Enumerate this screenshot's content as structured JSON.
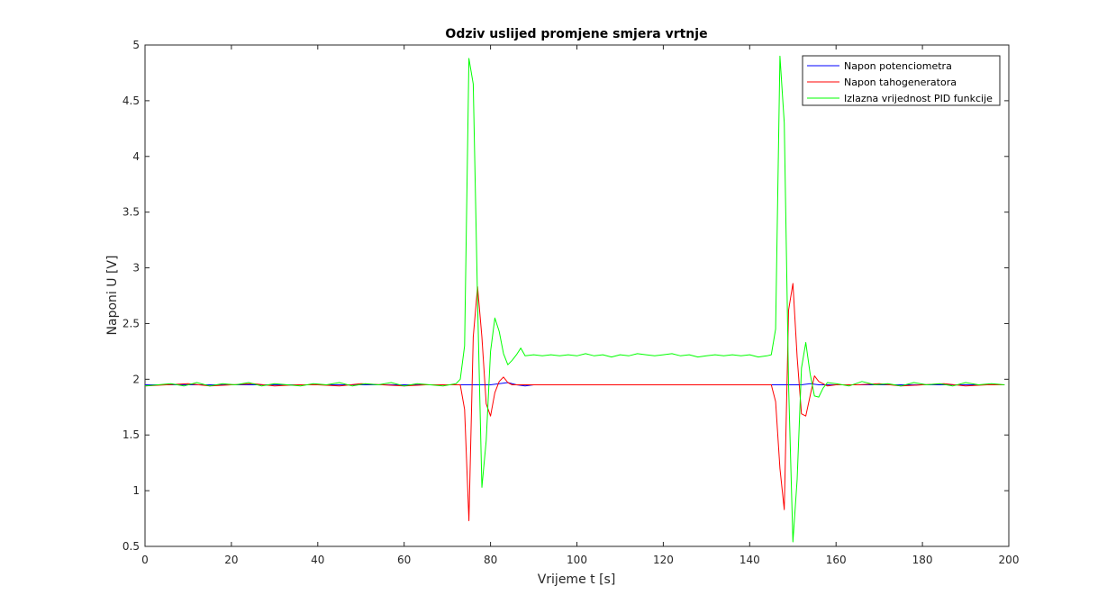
{
  "chart_data": {
    "type": "line",
    "title": "Odziv uslijed promjene smjera vrtnje",
    "xlabel": "Vrijeme t [s]",
    "ylabel": "Naponi U [V]",
    "xlim": [
      0,
      200
    ],
    "ylim": [
      0.5,
      5
    ],
    "xticks": [
      0,
      20,
      40,
      60,
      80,
      100,
      120,
      140,
      160,
      180,
      200
    ],
    "yticks": [
      0.5,
      1,
      1.5,
      2,
      2.5,
      3,
      3.5,
      4,
      4.5,
      5
    ],
    "grid": false,
    "legend_position": "top-right",
    "series": [
      {
        "name": "Napon potenciometra",
        "color": "#0000ff",
        "x": [
          0,
          10,
          20,
          30,
          40,
          50,
          60,
          70,
          74,
          76,
          78,
          80,
          82,
          84,
          86,
          88,
          90,
          100,
          110,
          120,
          130,
          140,
          146,
          148,
          150,
          152,
          154,
          156,
          160,
          170,
          180,
          190,
          199
        ],
        "y": [
          1.95,
          1.95,
          1.95,
          1.95,
          1.95,
          1.95,
          1.95,
          1.95,
          1.95,
          1.95,
          1.95,
          1.95,
          1.96,
          1.97,
          1.95,
          1.94,
          1.95,
          1.95,
          1.95,
          1.95,
          1.95,
          1.95,
          1.95,
          1.95,
          1.95,
          1.95,
          1.96,
          1.95,
          1.95,
          1.95,
          1.95,
          1.95,
          1.95
        ]
      },
      {
        "name": "Napon tahogeneratora",
        "color": "#ff0000",
        "x": [
          0,
          5,
          10,
          15,
          20,
          25,
          30,
          35,
          40,
          45,
          50,
          55,
          60,
          65,
          70,
          73,
          74,
          75,
          76,
          77,
          78,
          79,
          80,
          81,
          82,
          83,
          84,
          85,
          86,
          88,
          90,
          100,
          110,
          120,
          130,
          140,
          145,
          146,
          147,
          148,
          149,
          150,
          151,
          152,
          153,
          154,
          155,
          156,
          158,
          160,
          165,
          170,
          175,
          180,
          185,
          190,
          195,
          199
        ],
        "y": [
          1.94,
          1.95,
          1.96,
          1.94,
          1.95,
          1.96,
          1.94,
          1.95,
          1.95,
          1.94,
          1.96,
          1.95,
          1.94,
          1.95,
          1.95,
          1.95,
          1.73,
          0.73,
          2.38,
          2.83,
          2.38,
          1.78,
          1.67,
          1.88,
          1.98,
          2.02,
          1.97,
          1.95,
          1.95,
          1.95,
          1.95,
          1.95,
          1.95,
          1.95,
          1.95,
          1.95,
          1.95,
          1.8,
          1.2,
          0.83,
          2.62,
          2.86,
          2.2,
          1.69,
          1.67,
          1.85,
          2.03,
          1.98,
          1.94,
          1.95,
          1.95,
          1.96,
          1.94,
          1.95,
          1.96,
          1.94,
          1.95,
          1.95
        ]
      },
      {
        "name": "Izlazna vrijednost PID funkcije",
        "color": "#00ff00",
        "x": [
          0,
          3,
          6,
          9,
          12,
          15,
          18,
          21,
          24,
          27,
          30,
          33,
          36,
          39,
          42,
          45,
          48,
          51,
          54,
          57,
          60,
          63,
          66,
          69,
          72,
          73,
          74,
          75,
          76,
          77,
          78,
          79,
          80,
          81,
          82,
          83,
          84,
          85,
          86,
          87,
          88,
          90,
          92,
          94,
          96,
          98,
          100,
          102,
          104,
          106,
          108,
          110,
          112,
          114,
          116,
          118,
          120,
          122,
          124,
          126,
          128,
          130,
          132,
          134,
          136,
          138,
          140,
          142,
          144,
          145,
          146,
          147,
          148,
          149,
          150,
          151,
          152,
          153,
          154,
          155,
          156,
          157,
          158,
          160,
          163,
          166,
          169,
          172,
          175,
          178,
          181,
          184,
          187,
          190,
          193,
          196,
          199
        ],
        "y": [
          1.94,
          1.95,
          1.96,
          1.94,
          1.97,
          1.94,
          1.96,
          1.95,
          1.97,
          1.94,
          1.96,
          1.95,
          1.94,
          1.96,
          1.95,
          1.97,
          1.94,
          1.96,
          1.95,
          1.97,
          1.94,
          1.96,
          1.95,
          1.94,
          1.96,
          2.0,
          2.3,
          4.88,
          4.65,
          2.7,
          1.03,
          1.45,
          2.25,
          2.55,
          2.43,
          2.23,
          2.13,
          2.17,
          2.22,
          2.28,
          2.21,
          2.22,
          2.21,
          2.22,
          2.21,
          2.22,
          2.21,
          2.23,
          2.21,
          2.22,
          2.2,
          2.22,
          2.21,
          2.23,
          2.22,
          2.21,
          2.22,
          2.23,
          2.21,
          2.22,
          2.2,
          2.21,
          2.22,
          2.21,
          2.22,
          2.21,
          2.22,
          2.2,
          2.21,
          2.22,
          2.45,
          4.9,
          4.3,
          1.95,
          0.54,
          1.1,
          2.1,
          2.33,
          2.05,
          1.85,
          1.84,
          1.92,
          1.97,
          1.96,
          1.94,
          1.98,
          1.95,
          1.96,
          1.94,
          1.97,
          1.95,
          1.96,
          1.94,
          1.97,
          1.95,
          1.96,
          1.95
        ]
      }
    ]
  }
}
